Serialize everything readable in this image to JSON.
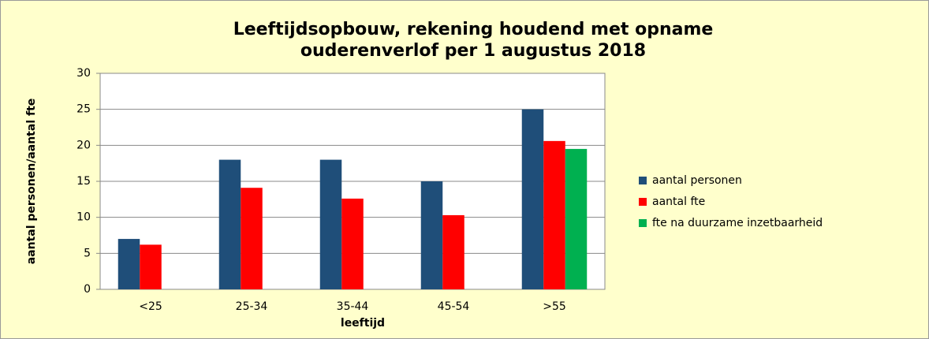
{
  "chart_data": {
    "type": "bar",
    "title": [
      "Leeftijdsopbouw, rekening houdend met opname",
      "ouderenverlof per 1 augustus 2018"
    ],
    "x_label": "leeftijd",
    "y_label": "aantal personen/aantal fte",
    "categories": [
      "<25",
      "25-34",
      "35-44",
      "45-54",
      ">55"
    ],
    "series": [
      {
        "name": "aantal personen",
        "color": "#1f4e79",
        "values": [
          7,
          18,
          18,
          15,
          25
        ]
      },
      {
        "name": "aantal fte",
        "color": "#ff0000",
        "values": [
          6.2,
          14.1,
          12.6,
          10.3,
          20.6
        ]
      },
      {
        "name": "fte na duurzame inzetbaarheid",
        "color": "#00b050",
        "values": [
          null,
          null,
          null,
          null,
          19.5
        ]
      }
    ],
    "ylim": [
      0,
      30
    ],
    "yticks": [
      0,
      5,
      10,
      15,
      20,
      25,
      30
    ],
    "grid": true,
    "legend": "right"
  }
}
